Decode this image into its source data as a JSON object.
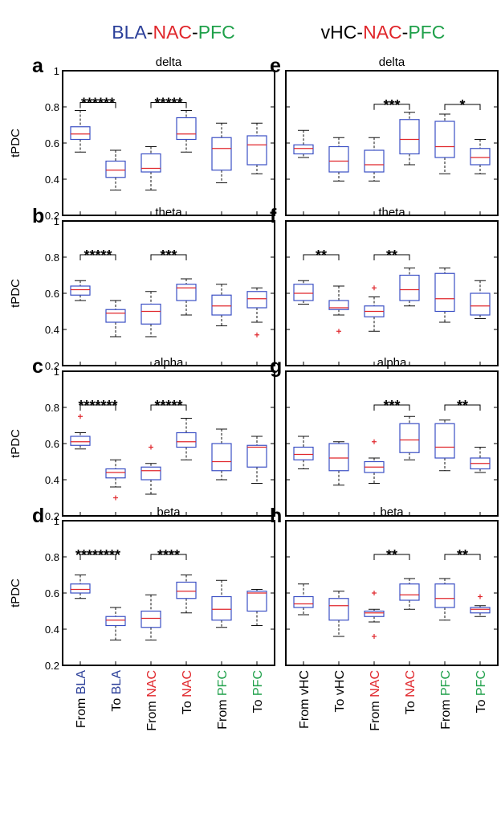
{
  "colors": {
    "BLA": "#2b3f99",
    "NAC": "#e0262b",
    "PFC": "#1fa04a",
    "vHC": "#000000",
    "box": "#3b4fc4",
    "median": "#e0262b"
  },
  "titles": {
    "left": [
      {
        "text": "BLA",
        "color": "BLA"
      },
      {
        "text": "-",
        "color": "vHC"
      },
      {
        "text": "NAC",
        "color": "NAC"
      },
      {
        "text": "-",
        "color": "vHC"
      },
      {
        "text": "PFC",
        "color": "PFC"
      }
    ],
    "right": [
      {
        "text": "vHC",
        "color": "vHC"
      },
      {
        "text": "-",
        "color": "vHC"
      },
      {
        "text": "NAC",
        "color": "NAC"
      },
      {
        "text": "-",
        "color": "vHC"
      },
      {
        "text": "PFC",
        "color": "PFC"
      }
    ]
  },
  "ylabel": "tPDC",
  "y_ticks": [
    0.2,
    0.4,
    0.6,
    0.8,
    1
  ],
  "ylim": [
    0.2,
    1
  ],
  "x_labels": {
    "left": [
      [
        {
          "t": "From ",
          "c": "vHC"
        },
        {
          "t": "BLA",
          "c": "BLA"
        }
      ],
      [
        {
          "t": "To ",
          "c": "vHC"
        },
        {
          "t": "BLA",
          "c": "BLA"
        }
      ],
      [
        {
          "t": "From ",
          "c": "vHC"
        },
        {
          "t": "NAC",
          "c": "NAC"
        }
      ],
      [
        {
          "t": "To ",
          "c": "vHC"
        },
        {
          "t": "NAC",
          "c": "NAC"
        }
      ],
      [
        {
          "t": "From ",
          "c": "vHC"
        },
        {
          "t": "PFC",
          "c": "PFC"
        }
      ],
      [
        {
          "t": "To ",
          "c": "vHC"
        },
        {
          "t": "PFC",
          "c": "PFC"
        }
      ]
    ],
    "right": [
      [
        {
          "t": "From vHC",
          "c": "vHC"
        }
      ],
      [
        {
          "t": "To vHC",
          "c": "vHC"
        }
      ],
      [
        {
          "t": "From ",
          "c": "vHC"
        },
        {
          "t": "NAC",
          "c": "NAC"
        }
      ],
      [
        {
          "t": "To ",
          "c": "vHC"
        },
        {
          "t": "NAC",
          "c": "NAC"
        }
      ],
      [
        {
          "t": "From ",
          "c": "vHC"
        },
        {
          "t": "PFC",
          "c": "PFC"
        }
      ],
      [
        {
          "t": "To ",
          "c": "vHC"
        },
        {
          "t": "PFC",
          "c": "PFC"
        }
      ]
    ]
  },
  "chart_data": [
    {
      "type": "box",
      "panel": "a",
      "title": "delta",
      "ylim": [
        0.2,
        1
      ],
      "boxes": [
        {
          "min": 0.55,
          "q1": 0.62,
          "median": 0.65,
          "q3": 0.69,
          "max": 0.78,
          "outliers": []
        },
        {
          "min": 0.34,
          "q1": 0.41,
          "median": 0.45,
          "q3": 0.5,
          "max": 0.56,
          "outliers": []
        },
        {
          "min": 0.34,
          "q1": 0.44,
          "median": 0.46,
          "q3": 0.54,
          "max": 0.58,
          "outliers": []
        },
        {
          "min": 0.55,
          "q1": 0.62,
          "median": 0.65,
          "q3": 0.74,
          "max": 0.78,
          "outliers": []
        },
        {
          "min": 0.38,
          "q1": 0.45,
          "median": 0.57,
          "q3": 0.63,
          "max": 0.71,
          "outliers": []
        },
        {
          "min": 0.43,
          "q1": 0.48,
          "median": 0.59,
          "q3": 0.64,
          "max": 0.71,
          "outliers": []
        }
      ],
      "sig": [
        {
          "from": 0,
          "to": 1,
          "stars": "******"
        },
        {
          "from": 2,
          "to": 3,
          "stars": "*****"
        }
      ]
    },
    {
      "type": "box",
      "panel": "b",
      "title": "theta",
      "ylim": [
        0.2,
        1
      ],
      "boxes": [
        {
          "min": 0.56,
          "q1": 0.59,
          "median": 0.62,
          "q3": 0.64,
          "max": 0.67,
          "outliers": []
        },
        {
          "min": 0.36,
          "q1": 0.44,
          "median": 0.49,
          "q3": 0.51,
          "max": 0.56,
          "outliers": []
        },
        {
          "min": 0.36,
          "q1": 0.43,
          "median": 0.5,
          "q3": 0.54,
          "max": 0.61,
          "outliers": []
        },
        {
          "min": 0.48,
          "q1": 0.56,
          "median": 0.63,
          "q3": 0.65,
          "max": 0.68,
          "outliers": []
        },
        {
          "min": 0.42,
          "q1": 0.48,
          "median": 0.53,
          "q3": 0.59,
          "max": 0.65,
          "outliers": []
        },
        {
          "min": 0.44,
          "q1": 0.52,
          "median": 0.57,
          "q3": 0.61,
          "max": 0.63,
          "outliers": [
            0.37
          ]
        }
      ],
      "sig": [
        {
          "from": 0,
          "to": 1,
          "stars": "*****"
        },
        {
          "from": 2,
          "to": 3,
          "stars": "***"
        }
      ]
    },
    {
      "type": "box",
      "panel": "c",
      "title": "alpha",
      "ylim": [
        0.2,
        1
      ],
      "boxes": [
        {
          "min": 0.57,
          "q1": 0.59,
          "median": 0.61,
          "q3": 0.64,
          "max": 0.66,
          "outliers": [
            0.75
          ]
        },
        {
          "min": 0.36,
          "q1": 0.41,
          "median": 0.44,
          "q3": 0.46,
          "max": 0.51,
          "outliers": [
            0.3
          ]
        },
        {
          "min": 0.32,
          "q1": 0.4,
          "median": 0.45,
          "q3": 0.47,
          "max": 0.49,
          "outliers": [
            0.58
          ]
        },
        {
          "min": 0.51,
          "q1": 0.58,
          "median": 0.61,
          "q3": 0.66,
          "max": 0.74,
          "outliers": []
        },
        {
          "min": 0.4,
          "q1": 0.45,
          "median": 0.5,
          "q3": 0.6,
          "max": 0.68,
          "outliers": []
        },
        {
          "min": 0.38,
          "q1": 0.47,
          "median": 0.58,
          "q3": 0.59,
          "max": 0.64,
          "outliers": []
        }
      ],
      "sig": [
        {
          "from": 0,
          "to": 1,
          "stars": "*******"
        },
        {
          "from": 2,
          "to": 3,
          "stars": "*****"
        }
      ]
    },
    {
      "type": "box",
      "panel": "d",
      "title": "beta",
      "ylim": [
        0.2,
        1
      ],
      "boxes": [
        {
          "min": 0.57,
          "q1": 0.6,
          "median": 0.62,
          "q3": 0.65,
          "max": 0.7,
          "outliers": []
        },
        {
          "min": 0.34,
          "q1": 0.42,
          "median": 0.45,
          "q3": 0.47,
          "max": 0.52,
          "outliers": []
        },
        {
          "min": 0.34,
          "q1": 0.41,
          "median": 0.46,
          "q3": 0.5,
          "max": 0.59,
          "outliers": []
        },
        {
          "min": 0.49,
          "q1": 0.57,
          "median": 0.61,
          "q3": 0.66,
          "max": 0.7,
          "outliers": []
        },
        {
          "min": 0.41,
          "q1": 0.45,
          "median": 0.51,
          "q3": 0.58,
          "max": 0.67,
          "outliers": []
        },
        {
          "min": 0.42,
          "q1": 0.5,
          "median": 0.6,
          "q3": 0.61,
          "max": 0.62,
          "outliers": []
        }
      ],
      "sig": [
        {
          "from": 0,
          "to": 1,
          "stars": "********"
        },
        {
          "from": 2,
          "to": 3,
          "stars": "****"
        }
      ]
    },
    {
      "type": "box",
      "panel": "e",
      "title": "delta",
      "ylim": [
        0.2,
        1
      ],
      "boxes": [
        {
          "min": 0.52,
          "q1": 0.54,
          "median": 0.57,
          "q3": 0.59,
          "max": 0.67,
          "outliers": []
        },
        {
          "min": 0.39,
          "q1": 0.44,
          "median": 0.5,
          "q3": 0.58,
          "max": 0.63,
          "outliers": []
        },
        {
          "min": 0.39,
          "q1": 0.44,
          "median": 0.48,
          "q3": 0.56,
          "max": 0.63,
          "outliers": []
        },
        {
          "min": 0.48,
          "q1": 0.54,
          "median": 0.62,
          "q3": 0.73,
          "max": 0.77,
          "outliers": []
        },
        {
          "min": 0.43,
          "q1": 0.52,
          "median": 0.58,
          "q3": 0.72,
          "max": 0.76,
          "outliers": []
        },
        {
          "min": 0.43,
          "q1": 0.48,
          "median": 0.52,
          "q3": 0.57,
          "max": 0.62,
          "outliers": []
        }
      ],
      "sig": [
        {
          "from": 2,
          "to": 3,
          "stars": "***"
        },
        {
          "from": 4,
          "to": 5,
          "stars": "*"
        }
      ]
    },
    {
      "type": "box",
      "panel": "f",
      "title": "theta",
      "ylim": [
        0.2,
        1
      ],
      "boxes": [
        {
          "min": 0.54,
          "q1": 0.56,
          "median": 0.6,
          "q3": 0.65,
          "max": 0.67,
          "outliers": []
        },
        {
          "min": 0.48,
          "q1": 0.51,
          "median": 0.52,
          "q3": 0.56,
          "max": 0.64,
          "outliers": [
            0.39
          ]
        },
        {
          "min": 0.39,
          "q1": 0.47,
          "median": 0.5,
          "q3": 0.53,
          "max": 0.58,
          "outliers": [
            0.63
          ]
        },
        {
          "min": 0.53,
          "q1": 0.56,
          "median": 0.62,
          "q3": 0.7,
          "max": 0.74,
          "outliers": []
        },
        {
          "min": 0.44,
          "q1": 0.5,
          "median": 0.57,
          "q3": 0.71,
          "max": 0.74,
          "outliers": []
        },
        {
          "min": 0.46,
          "q1": 0.48,
          "median": 0.53,
          "q3": 0.6,
          "max": 0.67,
          "outliers": []
        }
      ],
      "sig": [
        {
          "from": 0,
          "to": 1,
          "stars": "**"
        },
        {
          "from": 2,
          "to": 3,
          "stars": "**"
        }
      ]
    },
    {
      "type": "box",
      "panel": "g",
      "title": "alpha",
      "ylim": [
        0.2,
        1
      ],
      "boxes": [
        {
          "min": 0.46,
          "q1": 0.51,
          "median": 0.54,
          "q3": 0.58,
          "max": 0.64,
          "outliers": []
        },
        {
          "min": 0.37,
          "q1": 0.45,
          "median": 0.52,
          "q3": 0.6,
          "max": 0.61,
          "outliers": []
        },
        {
          "min": 0.38,
          "q1": 0.44,
          "median": 0.47,
          "q3": 0.5,
          "max": 0.52,
          "outliers": [
            0.61
          ]
        },
        {
          "min": 0.51,
          "q1": 0.55,
          "median": 0.62,
          "q3": 0.71,
          "max": 0.75,
          "outliers": []
        },
        {
          "min": 0.45,
          "q1": 0.52,
          "median": 0.58,
          "q3": 0.71,
          "max": 0.73,
          "outliers": []
        },
        {
          "min": 0.44,
          "q1": 0.46,
          "median": 0.49,
          "q3": 0.52,
          "max": 0.58,
          "outliers": []
        }
      ],
      "sig": [
        {
          "from": 2,
          "to": 3,
          "stars": "***"
        },
        {
          "from": 4,
          "to": 5,
          "stars": "**"
        }
      ]
    },
    {
      "type": "box",
      "panel": "h",
      "title": "beta",
      "ylim": [
        0.2,
        1
      ],
      "boxes": [
        {
          "min": 0.48,
          "q1": 0.52,
          "median": 0.54,
          "q3": 0.58,
          "max": 0.65,
          "outliers": []
        },
        {
          "min": 0.36,
          "q1": 0.45,
          "median": 0.53,
          "q3": 0.57,
          "max": 0.61,
          "outliers": []
        },
        {
          "min": 0.44,
          "q1": 0.47,
          "median": 0.49,
          "q3": 0.5,
          "max": 0.51,
          "outliers": [
            0.6,
            0.36
          ]
        },
        {
          "min": 0.51,
          "q1": 0.56,
          "median": 0.59,
          "q3": 0.65,
          "max": 0.68,
          "outliers": []
        },
        {
          "min": 0.45,
          "q1": 0.52,
          "median": 0.57,
          "q3": 0.65,
          "max": 0.68,
          "outliers": []
        },
        {
          "min": 0.47,
          "q1": 0.49,
          "median": 0.51,
          "q3": 0.52,
          "max": 0.53,
          "outliers": [
            0.58
          ]
        }
      ],
      "sig": [
        {
          "from": 2,
          "to": 3,
          "stars": "**"
        },
        {
          "from": 4,
          "to": 5,
          "stars": "**"
        }
      ]
    }
  ]
}
